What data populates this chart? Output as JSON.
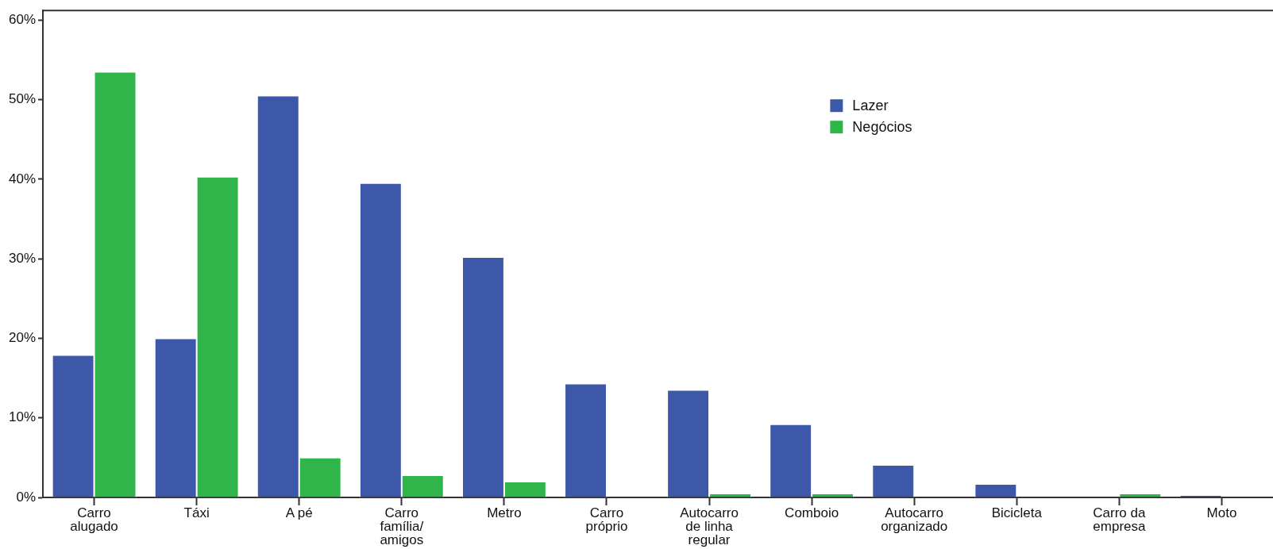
{
  "chart_data": {
    "type": "bar",
    "categories": [
      "Carro\nalugado",
      "Táxi",
      "A pé",
      "Carro\nfamília/\namigos",
      "Metro",
      "Carro\npróprio",
      "Autocarro\nde linha\nregular",
      "Comboio",
      "Autocarro\norganizado",
      "Bicicleta",
      "Carro da\nempresa",
      "Moto"
    ],
    "series": [
      {
        "name": "Lazer",
        "color": "#3d58a8",
        "values": [
          17.9,
          20.0,
          50.5,
          39.5,
          30.2,
          14.3,
          13.5,
          9.2,
          4.1,
          1.7,
          0,
          0.3
        ]
      },
      {
        "name": "Negócios",
        "color": "#2fb54a",
        "values": [
          53.5,
          40.3,
          5.0,
          2.8,
          2.0,
          0,
          0.5,
          0.5,
          0,
          0,
          0.5,
          0
        ]
      }
    ],
    "ylim": [
      0,
      61.2
    ],
    "yticks": [
      {
        "value": 0,
        "label": "0%"
      },
      {
        "value": 10,
        "label": "10%"
      },
      {
        "value": 20,
        "label": "20%"
      },
      {
        "value": 30,
        "label": "30%"
      },
      {
        "value": 40,
        "label": "40%"
      },
      {
        "value": 50,
        "label": "50%"
      },
      {
        "value": 60,
        "label": "60%"
      }
    ],
    "grid": false,
    "legend": "top right"
  }
}
